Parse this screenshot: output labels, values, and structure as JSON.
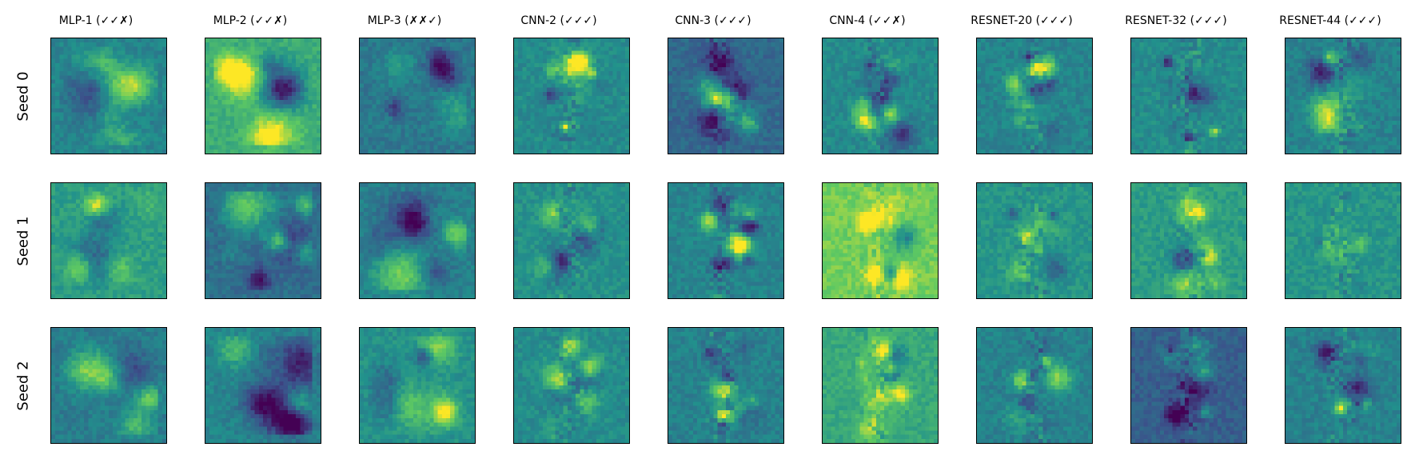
{
  "figure": {
    "columns": [
      {
        "title": "MLP-1 (✓✓✗)",
        "kind": "mlp"
      },
      {
        "title": "MLP-2 (✓✓✗)",
        "kind": "mlp"
      },
      {
        "title": "MLP-3 (✗✗✓)",
        "kind": "mlp"
      },
      {
        "title": "CNN-2 (✓✓✓)",
        "kind": "cnn"
      },
      {
        "title": "CNN-3 (✓✓✓)",
        "kind": "cnn"
      },
      {
        "title": "CNN-4 (✓✓✗)",
        "kind": "cnn"
      },
      {
        "title": "RESNET-20 (✓✓✓)",
        "kind": "resnet"
      },
      {
        "title": "RESNET-32 (✓✓✓)",
        "kind": "resnet"
      },
      {
        "title": "RESNET-44 (✓✓✓)",
        "kind": "resnet"
      }
    ],
    "rows": [
      {
        "label": "Seed 0"
      },
      {
        "label": "Seed 1"
      },
      {
        "label": "Seed 2"
      }
    ],
    "colormap": "viridis"
  }
}
